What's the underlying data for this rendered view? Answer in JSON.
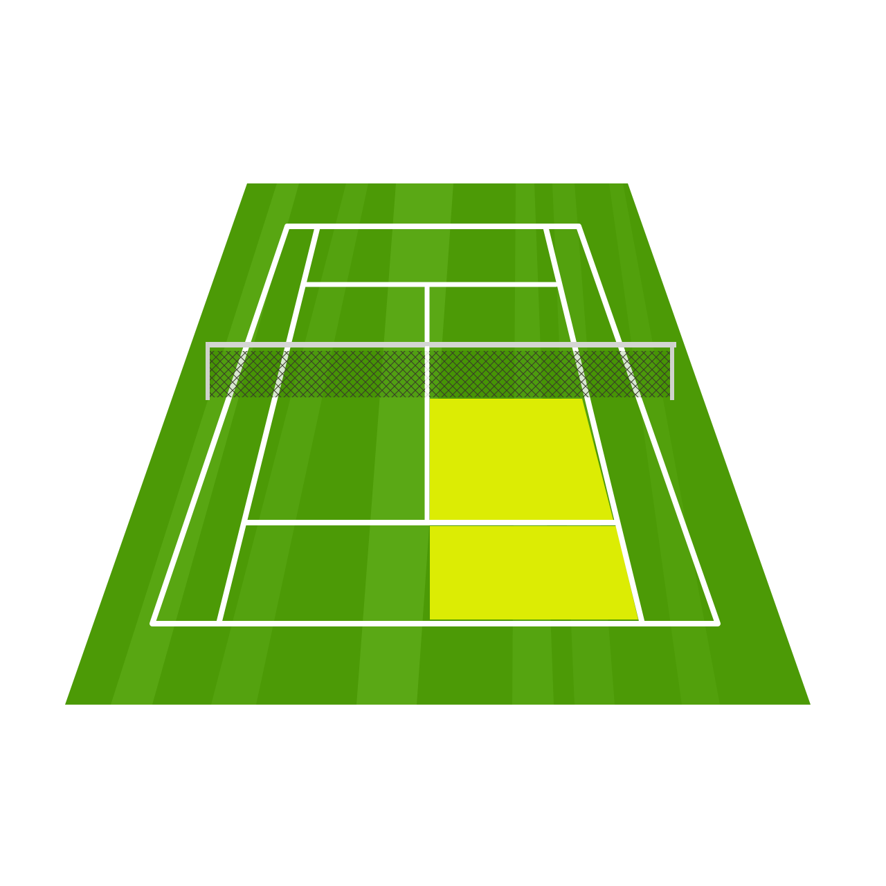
{
  "illustration": {
    "subject": "tennis-court",
    "view": "perspective",
    "highlighted_areas": [
      "service-box-right-near",
      "backcourt-right-near"
    ]
  },
  "colors": {
    "background": "#ffffff",
    "grass_dark": "#4c9a06",
    "grass_light": "#5aa815",
    "highlight": "#dcec04",
    "line": "#ffffff",
    "net_frame": "#d4d6d2",
    "net_mesh": "#3a2a30"
  }
}
